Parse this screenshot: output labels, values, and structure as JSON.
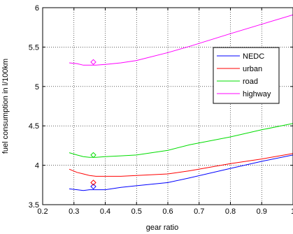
{
  "chart_data": {
    "type": "line",
    "title": "",
    "xlabel": "gear ratio",
    "ylabel": "fuel consumption in l/100km",
    "xlim": [
      0.2,
      1.0
    ],
    "ylim": [
      3.5,
      6.0
    ],
    "x_ticks": [
      0.2,
      0.3,
      0.4,
      0.5,
      0.6,
      0.7,
      0.8,
      0.9,
      1.0
    ],
    "x_tick_labels": [
      "0.2",
      "0.3",
      "0.4",
      "0.5",
      "0.6",
      "0.7",
      "0.8",
      "0.9",
      "1"
    ],
    "y_ticks": [
      3.5,
      4.0,
      4.5,
      5.0,
      5.5,
      6.0
    ],
    "y_tick_labels": [
      "3.5",
      "4",
      "4.5",
      "5",
      "5.5",
      "6"
    ],
    "grid": true,
    "legend_position": "upper-right",
    "series": [
      {
        "name": "NEDC",
        "color": "#0000ff",
        "x": [
          0.285,
          0.31,
          0.33,
          0.35,
          0.37,
          0.4,
          0.45,
          0.5,
          0.6,
          0.67,
          0.8,
          0.9,
          1.0
        ],
        "y": [
          3.7,
          3.69,
          3.68,
          3.69,
          3.69,
          3.69,
          3.72,
          3.74,
          3.78,
          3.84,
          3.96,
          4.05,
          4.13
        ],
        "marker": {
          "x": 0.362,
          "y": 3.73
        }
      },
      {
        "name": "urban",
        "color": "#ff0000",
        "x": [
          0.285,
          0.31,
          0.33,
          0.35,
          0.37,
          0.4,
          0.45,
          0.5,
          0.6,
          0.67,
          0.8,
          0.9,
          1.0
        ],
        "y": [
          3.95,
          3.91,
          3.89,
          3.87,
          3.86,
          3.86,
          3.86,
          3.87,
          3.89,
          3.93,
          4.02,
          4.08,
          4.15
        ],
        "marker": {
          "x": 0.362,
          "y": 3.78
        }
      },
      {
        "name": "road",
        "color": "#00dd00",
        "x": [
          0.285,
          0.31,
          0.33,
          0.35,
          0.37,
          0.4,
          0.45,
          0.5,
          0.6,
          0.67,
          0.8,
          0.9,
          1.0
        ],
        "y": [
          4.16,
          4.13,
          4.11,
          4.1,
          4.1,
          4.11,
          4.12,
          4.13,
          4.19,
          4.26,
          4.36,
          4.45,
          4.53
        ],
        "marker": {
          "x": 0.362,
          "y": 4.13
        }
      },
      {
        "name": "highway",
        "color": "#ff00ff",
        "x": [
          0.285,
          0.31,
          0.33,
          0.35,
          0.37,
          0.4,
          0.45,
          0.5,
          0.6,
          0.67,
          0.8,
          0.9,
          1.0
        ],
        "y": [
          5.3,
          5.29,
          5.27,
          5.27,
          5.27,
          5.28,
          5.3,
          5.33,
          5.43,
          5.51,
          5.67,
          5.79,
          5.91
        ],
        "marker": {
          "x": 0.362,
          "y": 5.31
        }
      }
    ]
  }
}
